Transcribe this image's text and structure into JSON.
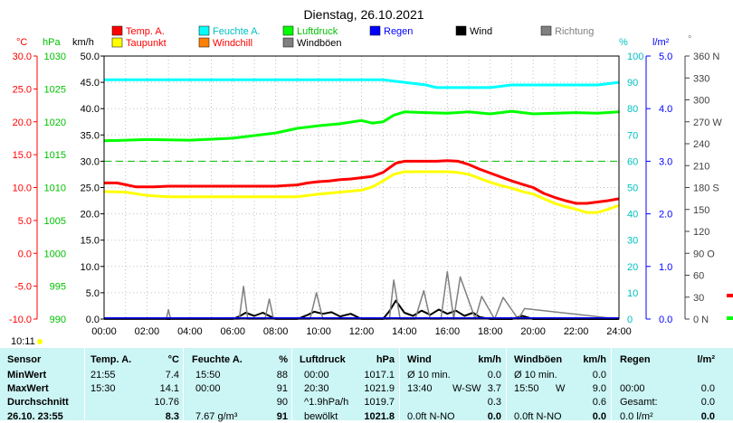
{
  "title": "Dienstag, 26.10.2021",
  "legend": [
    {
      "label": "Temp. A.",
      "color": "#ff0000",
      "text_color": "#ff0000"
    },
    {
      "label": "Feuchte A.",
      "color": "#00ffff",
      "text_color": "#00c0c0"
    },
    {
      "label": "Luftdruck",
      "color": "#00ff00",
      "text_color": "#00c000"
    },
    {
      "label": "Regen",
      "color": "#0000ff",
      "text_color": "#0000ff"
    },
    {
      "label": "Wind",
      "color": "#000000",
      "text_color": "#000000"
    },
    {
      "label": "Richtung",
      "color": "#808080",
      "text_color": "#808080"
    },
    {
      "label": "Taupunkt",
      "color": "#ffff00",
      "text_color": "#ff0000"
    },
    {
      "label": "Windchill",
      "color": "#ff8000",
      "text_color": "#ff0000"
    },
    {
      "label": "Windböen",
      "color": "#808080",
      "text_color": "#000000"
    }
  ],
  "axes": {
    "temp": {
      "unit": "°C",
      "ticks": [
        "30.0",
        "25.0",
        "20.0",
        "15.0",
        "10.0",
        "5.0",
        "0.0",
        "-5.0",
        "-10.0"
      ],
      "color": "#ff0000"
    },
    "pressure": {
      "unit": "hPa",
      "ticks": [
        "1030",
        "1025",
        "1020",
        "1015",
        "1010",
        "1005",
        "1000",
        "995",
        "990"
      ],
      "color": "#00c000"
    },
    "wind": {
      "unit": "km/h",
      "ticks": [
        "50.0",
        "45.0",
        "40.0",
        "35.0",
        "30.0",
        "25.0",
        "20.0",
        "15.0",
        "10.0",
        "5.0",
        "0.0"
      ],
      "color": "#000000"
    },
    "humidity": {
      "unit": "%",
      "ticks": [
        "100",
        "90",
        "80",
        "70",
        "60",
        "50",
        "40",
        "30",
        "20",
        "10",
        "0"
      ],
      "color": "#00c0c0"
    },
    "rain": {
      "unit": "l/m²",
      "ticks": [
        "5.0",
        "4.0",
        "3.0",
        "2.0",
        "1.0",
        "0.0"
      ],
      "color": "#0000ff"
    },
    "direction": {
      "unit": "°",
      "ticks": [
        "360 N",
        "330",
        "300",
        "270 W",
        "240",
        "210",
        "180 S",
        "150",
        "120",
        "90 O",
        "60",
        "30",
        "0  N"
      ],
      "color": "#404040"
    },
    "time": {
      "ticks": [
        "00:00",
        "02:00",
        "04:00",
        "06:00",
        "08:00",
        "10:00",
        "12:00",
        "14:00",
        "16:00",
        "18:00",
        "20:00",
        "22:00",
        "24:00"
      ]
    }
  },
  "timestamp": "10:11",
  "chart_data": {
    "type": "line",
    "title": "Dienstag, 26.10.2021",
    "x_unit": "hours",
    "xlim": [
      0,
      24
    ],
    "series": [
      {
        "name": "Temp. A.",
        "axis": "temp",
        "color": "#ff0000",
        "x": [
          0,
          0.6,
          1.5,
          2.3,
          3,
          4,
          5,
          6,
          7,
          8,
          8.5,
          9,
          9.5,
          10,
          10.5,
          11,
          11.5,
          12,
          12.5,
          13,
          13.3,
          13.6,
          14,
          14.5,
          15,
          15.5,
          16,
          16.5,
          17,
          17.5,
          18,
          18.5,
          19,
          19.5,
          20,
          20.5,
          21,
          21.5,
          22,
          22.5,
          23,
          23.5,
          24
        ],
        "y": [
          10.7,
          10.7,
          10.1,
          10.1,
          10.2,
          10.2,
          10.2,
          10.2,
          10.2,
          10.2,
          10.3,
          10.4,
          10.7,
          10.9,
          11,
          11.2,
          11.3,
          11.5,
          11.7,
          12.3,
          13,
          13.7,
          14,
          14,
          14,
          14,
          14.1,
          14,
          13.5,
          12.8,
          12.2,
          11.6,
          11,
          10.5,
          10,
          9.1,
          8.5,
          8,
          7.6,
          7.6,
          7.8,
          8,
          8.3
        ]
      },
      {
        "name": "Taupunkt",
        "axis": "temp",
        "color": "#ffff00",
        "x": [
          0,
          1,
          2,
          3,
          4,
          5,
          6,
          7,
          8,
          9,
          10,
          11,
          12,
          12.5,
          13,
          13.5,
          14,
          15,
          16,
          16.5,
          17,
          17.5,
          18,
          18.5,
          19,
          19.5,
          20,
          20.5,
          21,
          21.5,
          22,
          22.5,
          23,
          23.5,
          24
        ],
        "y": [
          9.4,
          9.3,
          8.8,
          8.6,
          8.6,
          8.6,
          8.6,
          8.6,
          8.6,
          8.6,
          9,
          9.3,
          9.6,
          10.1,
          11,
          12,
          12.4,
          12.4,
          12.4,
          12.3,
          12,
          11.4,
          10.8,
          10.3,
          9.9,
          9.4,
          9,
          8.3,
          7.6,
          7.1,
          6.7,
          6.2,
          6.2,
          6.7,
          7.3
        ]
      },
      {
        "name": "Feuchte A.",
        "axis": "humidity",
        "color": "#00ffff",
        "x": [
          0,
          6,
          9,
          12,
          13,
          14,
          15,
          15.5,
          16,
          18,
          19,
          22,
          23,
          24
        ],
        "y": [
          91,
          91,
          91,
          91,
          91,
          90,
          89,
          88,
          88,
          88,
          89,
          89,
          89,
          90
        ]
      },
      {
        "name": "Luftdruck",
        "axis": "pressure",
        "color": "#00ff00",
        "x": [
          0,
          2,
          4,
          6,
          7,
          8,
          9,
          10,
          11,
          12,
          12.5,
          13,
          13.5,
          14,
          15,
          16,
          17,
          18,
          19,
          20,
          21,
          22,
          23,
          24
        ],
        "y": [
          1017.1,
          1017.3,
          1017.2,
          1017.5,
          1017.9,
          1018.3,
          1019,
          1019.4,
          1019.7,
          1020.2,
          1019.8,
          1020,
          1021,
          1021.5,
          1021.4,
          1021.3,
          1021.5,
          1021.2,
          1021.6,
          1021.2,
          1021.3,
          1021.4,
          1021.3,
          1021.5
        ]
      },
      {
        "name": "Wind",
        "axis": "wind",
        "color": "#000000",
        "x": [
          0,
          6,
          6.3,
          6.6,
          7,
          7.4,
          7.8,
          8,
          9,
          9.5,
          9.8,
          10.2,
          10.6,
          11,
          11.5,
          11.8,
          12,
          13,
          13.3,
          13.6,
          14,
          14.4,
          14.8,
          15.2,
          15.6,
          16,
          16.4,
          16.8,
          17.2,
          17.5,
          18,
          19,
          19.5,
          20,
          24
        ],
        "y": [
          0,
          0,
          0.5,
          1.2,
          0.6,
          1.2,
          0.4,
          0,
          0,
          0.8,
          1.4,
          1,
          1.3,
          0.5,
          1,
          0.4,
          0,
          0,
          1.5,
          3.5,
          1.2,
          0.6,
          1.6,
          0.8,
          1.8,
          1,
          1.6,
          0.6,
          1.2,
          0.4,
          0,
          0,
          0.6,
          0,
          0
        ]
      },
      {
        "name": "Windböen",
        "axis": "wind",
        "color": "#808080",
        "x": [
          0,
          2.9,
          3,
          3.1,
          6.3,
          6.5,
          6.7,
          7.5,
          7.7,
          7.9,
          9.6,
          9.9,
          10.2,
          13.3,
          13.5,
          13.8,
          14.5,
          14.9,
          15.2,
          15.7,
          16,
          16.3,
          16.6,
          17.3,
          17.6,
          18.2,
          18.6,
          19.3,
          19.6,
          24
        ],
        "y": [
          0,
          0,
          1.8,
          0,
          0,
          6.2,
          0,
          0,
          3.8,
          0,
          0,
          5,
          0,
          0,
          7.4,
          0,
          0,
          5.4,
          0,
          0,
          9,
          0,
          8,
          0,
          4.3,
          0,
          4.1,
          0,
          2,
          0
        ]
      }
    ]
  },
  "table": {
    "headers": {
      "sensor": "Sensor",
      "temp": "Temp. A.",
      "temp_unit": "°C",
      "hum": "Feuchte A.",
      "hum_unit": "%",
      "press": "Luftdruck",
      "press_unit": "hPa",
      "wind": "Wind",
      "wind_unit": "km/h",
      "gust": "Windböen",
      "gust_unit": "km/h",
      "rain": "Regen",
      "rain_unit": "l/m²"
    },
    "rows": [
      {
        "label": "MinWert",
        "temp_time": "21:55",
        "temp": "7.4",
        "hum_time": "15:50",
        "hum": "88",
        "press_time": "00:00",
        "press": "1017.1",
        "wind_time": "Ø 10 min.",
        "wind_dir": "",
        "wind": "0.0",
        "gust_time": "Ø 10 min.",
        "gust_dir": "",
        "gust": "0.0",
        "rain_time": "",
        "rain": ""
      },
      {
        "label": "MaxWert",
        "temp_time": "15:30",
        "temp": "14.1",
        "hum_time": "00:00",
        "hum": "91",
        "press_time": "20:30",
        "press": "1021.9",
        "wind_time": "13:40",
        "wind_dir": "W-SW",
        "wind": "3.7",
        "gust_time": "15:50",
        "gust_dir": "W",
        "gust": "9.0",
        "rain_time": "00:00",
        "rain": "0.0"
      },
      {
        "label": "Durchschnitt",
        "temp_time": "",
        "temp": "10.76",
        "hum_time": "",
        "hum": "90",
        "press_time": "^1.9hPa/h",
        "press": "1019.7",
        "wind_time": "",
        "wind_dir": "",
        "wind": "0.3",
        "gust_time": "",
        "gust_dir": "",
        "gust": "0.6",
        "rain_time": "Gesamt:",
        "rain": "0.0"
      },
      {
        "label": "26.10. 23:55",
        "temp_time": "",
        "temp": "8.3",
        "hum_time": "7.67 g/m³",
        "hum": "91",
        "press_time": "bewölkt",
        "press": "1021.8",
        "wind_time": "0.0ft N-NO",
        "wind_dir": "",
        "wind": "0.0",
        "gust_time": "0.0ft N-NO",
        "gust_dir": "",
        "gust": "0.0",
        "rain_time": "0.0 l/m²",
        "rain": "0.0"
      }
    ]
  }
}
